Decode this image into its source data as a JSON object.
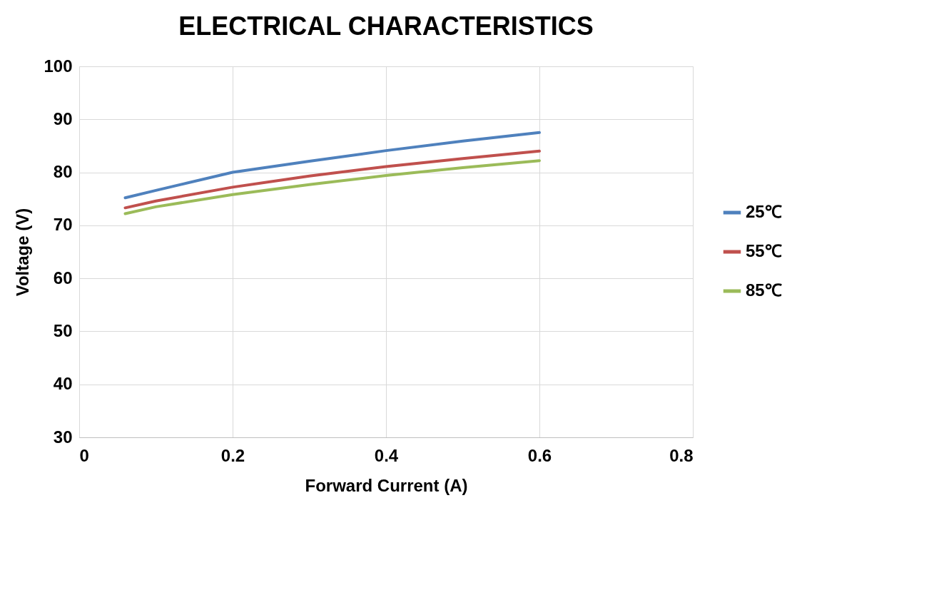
{
  "chart_data": {
    "type": "line",
    "title": "ELECTRICAL CHARACTERISTICS",
    "xlabel": "Forward Current (A)",
    "ylabel": "Voltage (V)",
    "x": [
      0.06,
      0.1,
      0.2,
      0.3,
      0.4,
      0.5,
      0.6
    ],
    "series": [
      {
        "name": "25℃",
        "color": "#4f81bd",
        "values": [
          75.2,
          76.6,
          80.0,
          82.1,
          84.1,
          85.9,
          87.5
        ]
      },
      {
        "name": "55℃",
        "color": "#c0504d",
        "values": [
          73.3,
          74.6,
          77.2,
          79.3,
          81.1,
          82.6,
          84.0
        ]
      },
      {
        "name": "85℃",
        "color": "#9bbb59",
        "values": [
          72.2,
          73.5,
          75.8,
          77.7,
          79.4,
          80.9,
          82.2
        ]
      }
    ],
    "xlim": [
      0,
      0.8
    ],
    "xticks": [
      0,
      0.2,
      0.4,
      0.6,
      0.8
    ],
    "ylim": [
      30,
      100
    ],
    "yticks": [
      30,
      40,
      50,
      60,
      70,
      80,
      90,
      100
    ],
    "grid": true,
    "legend": "right",
    "marker": "none",
    "line_style": "solid"
  }
}
